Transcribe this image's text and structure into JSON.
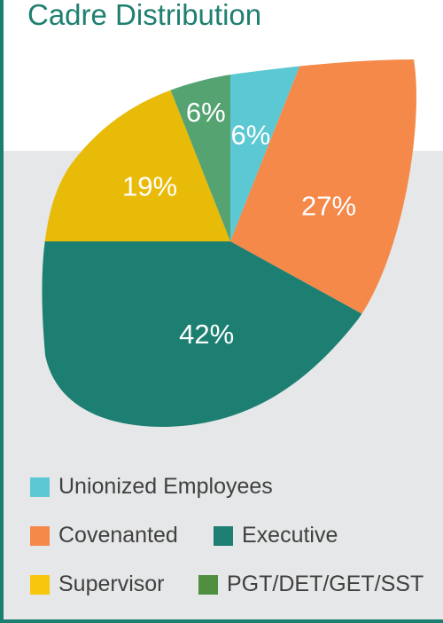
{
  "title": "Cadre Distribution",
  "chart_data": {
    "type": "pie",
    "title": "Cadre Distribution",
    "categories": [
      "Unionized Employees",
      "Covenanted",
      "Executive",
      "Supervisor",
      "PGT/DET/GET/SST"
    ],
    "values": [
      6,
      27,
      42,
      19,
      6
    ],
    "labels": [
      "6%",
      "27%",
      "42%",
      "19%",
      "6%"
    ],
    "colors": [
      "#5bc8d3",
      "#f4894a",
      "#1c7f72",
      "#e9bb09",
      "#56a372"
    ],
    "legend_colors": [
      "#5bc8d3",
      "#f4894a",
      "#1c7f72",
      "#f8c60c",
      "#4f8f3f"
    ],
    "legend_position": "bottom"
  }
}
